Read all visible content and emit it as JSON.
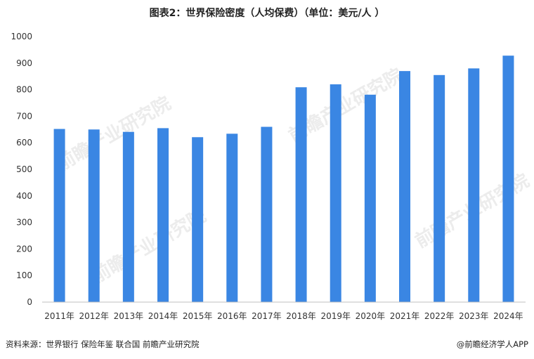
{
  "header": {
    "title": "图表2：世界保险密度（人均保费）（单位：美元/人 ）"
  },
  "footer": {
    "source": "资料来源：世界银行 保险年鉴 联合国 前瞻产业研究院",
    "credit": "@前瞻经济学人APP"
  },
  "watermark": {
    "text": "前瞻产业研究院"
  },
  "colors": {
    "bar": "#3a86e3",
    "axis": "#bfbfbf"
  },
  "chart_data": {
    "type": "bar",
    "categories": [
      "2011年",
      "2012年",
      "2013年",
      "2014年",
      "2015年",
      "2016年",
      "2017年",
      "2018年",
      "2019年",
      "2020年",
      "2021年",
      "2022年",
      "2023年",
      "2024年"
    ],
    "values": [
      652,
      650,
      641,
      655,
      621,
      634,
      660,
      809,
      820,
      781,
      870,
      855,
      880,
      928
    ],
    "title": "图表2：世界保险密度（人均保费）（单位：美元/人 ）",
    "xlabel": "",
    "ylabel": "",
    "ylim": [
      0,
      1000
    ],
    "yticks": [
      0,
      100,
      200,
      300,
      400,
      500,
      600,
      700,
      800,
      900,
      1000
    ],
    "grid": false,
    "legend": "none"
  }
}
